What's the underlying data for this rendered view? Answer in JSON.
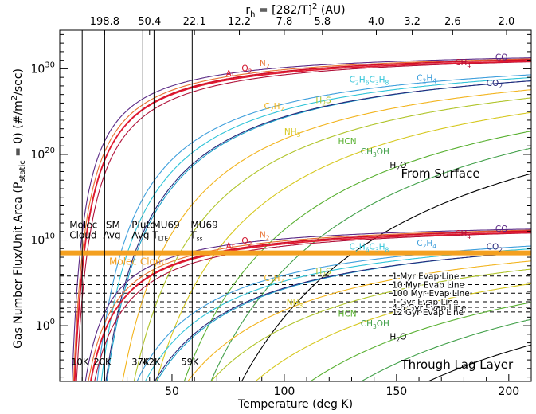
{
  "chart_data": {
    "type": "line",
    "xlabel": "Temperature (deg K)",
    "ylabel": "Gas Number Flux/Unit Area (P",
    "ylabel_sub": "static",
    "ylabel_tail": " = 0)  (#/m",
    "ylabel_sup": "2",
    "ylabel_end": "/sec)",
    "top_axis_label": "r",
    "top_axis_sub": "h",
    "top_axis_mid": " = [282/T]",
    "top_axis_sup": "2",
    "top_axis_end": " (AU)",
    "xlim": [
      0,
      210
    ],
    "y_scale": "log",
    "ylim_log10": [
      -6.5,
      34.5
    ],
    "x_ticks": [
      {
        "value": 50,
        "label": "50"
      },
      {
        "value": 100,
        "label": "100"
      },
      {
        "value": 150,
        "label": "150"
      },
      {
        "value": 200,
        "label": "200"
      }
    ],
    "y_ticks": [
      {
        "value": 0,
        "base": "10",
        "exp": "0"
      },
      {
        "value": 10,
        "base": "10",
        "exp": "10"
      },
      {
        "value": 20,
        "base": "10",
        "exp": "20"
      },
      {
        "value": 30,
        "base": "10",
        "exp": "30"
      }
    ],
    "top_ticks": [
      {
        "x": 20,
        "label": "198.8"
      },
      {
        "x": 40,
        "label": "50.4"
      },
      {
        "x": 60,
        "label": "22.1"
      },
      {
        "x": 80,
        "label": "12.2"
      },
      {
        "x": 100,
        "label": "7.8"
      },
      {
        "x": 117,
        "label": "5.8"
      },
      {
        "x": 141,
        "label": "4.0"
      },
      {
        "x": 157,
        "label": "3.2"
      },
      {
        "x": 175,
        "label": "2.6"
      },
      {
        "x": 199,
        "label": "2.0"
      }
    ],
    "vertical_markers": [
      {
        "x": 10,
        "label1": "Molec",
        "label2": "Cloud",
        "temp": "10K"
      },
      {
        "x": 20,
        "label1": "ISM",
        "label2": "Avg",
        "temp": "20K"
      },
      {
        "x": 37,
        "label1": "Pluto",
        "label2": "Avg",
        "temp": "37K"
      },
      {
        "x": 42,
        "label1": "MU69",
        "label2": "T",
        "sub": "LTE",
        "temp": "42K"
      },
      {
        "x": 59,
        "label1": "MU69",
        "label2": "T",
        "sub": "ss",
        "temp": "59K"
      }
    ],
    "orange_band": {
      "y_log10": 8.5,
      "label": "Molec Cloud",
      "color": "#f4a020"
    },
    "evap_lines": [
      {
        "y_log10": 5.8,
        "label": "1 Myr Evap Line"
      },
      {
        "y_log10": 4.8,
        "label": "10 Myr Evap Line"
      },
      {
        "y_log10": 3.8,
        "label": "100 Myr Evap Line"
      },
      {
        "y_log10": 2.8,
        "label": "1 Gyr Evap Line"
      },
      {
        "y_log10": 2.15,
        "label": "4.6 Gyr Evap Line"
      },
      {
        "y_log10": 1.6,
        "label": "12 Gyr Evap Line"
      }
    ],
    "panel_labels": [
      {
        "text": "From Surface",
        "y_log10": 17.3
      },
      {
        "text": "Through Lag Layer",
        "y_log10": -5.0
      }
    ],
    "series": [
      {
        "label": "CO",
        "color": "#5b2a86",
        "a": 32.3,
        "b": 215
      },
      {
        "label": "CH4",
        "color": "#b0123a",
        "a": 32.2,
        "b": 290
      },
      {
        "label": "N2",
        "color": "#e87030",
        "a": 32.3,
        "b": 240
      },
      {
        "label": "O2",
        "color": "#d0102a",
        "a": 32.3,
        "b": 260
      },
      {
        "label": "Ar",
        "color": "#e01a30",
        "a": 32.1,
        "b": 255
      },
      {
        "label": "C2H4",
        "color": "#3f9fdc",
        "a": 32.4,
        "b": 650
      },
      {
        "label": "C2H6",
        "color": "#30c4d8",
        "a": 32.4,
        "b": 720
      },
      {
        "label": "C3H8",
        "color": "#1aa0c8",
        "a": 32.5,
        "b": 820
      },
      {
        "label": "CO2",
        "color": "#28287a",
        "a": 32.4,
        "b": 800
      },
      {
        "label": "C2H2",
        "color": "#f2b41e",
        "a": 32.8,
        "b": 1100
      },
      {
        "label": "H2S",
        "color": "#b0c42a",
        "a": 32.8,
        "b": 1300
      },
      {
        "label": "NH3",
        "color": "#d6c820",
        "a": 33.0,
        "b": 1700
      },
      {
        "label": "HCN",
        "color": "#58b030",
        "a": 33.2,
        "b": 2200
      },
      {
        "label": "CH3OH",
        "color": "#42a04a",
        "a": 33.6,
        "b": 2700
      },
      {
        "label": "H2O",
        "color": "#000000",
        "a": 33.0,
        "b": 3200
      }
    ],
    "series_labels": [
      {
        "base": "CO",
        "subs": [],
        "color": "#5b2a86",
        "x": 194,
        "y": 31.0
      },
      {
        "base": "CH",
        "subs": [
          "4"
        ],
        "color": "#b0123a",
        "x": 176,
        "y": 30.4
      },
      {
        "base": "CO",
        "subs": [
          "2"
        ],
        "color": "#28287a",
        "x": 190,
        "y": 28.0
      },
      {
        "base": "N",
        "subs": [
          "2"
        ],
        "color": "#e87030",
        "x": 89,
        "y": 30.3
      },
      {
        "base": "O",
        "subs": [
          "2"
        ],
        "color": "#d0102a",
        "x": 81,
        "y": 29.7
      },
      {
        "base": "Ar",
        "subs": [],
        "color": "#e01a30",
        "x": 74,
        "y": 29.1
      },
      {
        "base": "C",
        "subs": [
          "2",
          "H",
          "6",
          "C",
          "3",
          "H",
          "8"
        ],
        "color": "#30c4d8",
        "x": 129,
        "y": 28.4
      },
      {
        "base": "C",
        "subs": [
          "2",
          "H",
          "4"
        ],
        "color": "#3f9fdc",
        "x": 159,
        "y": 28.6
      },
      {
        "base": "C",
        "subs": [
          "2",
          "H",
          "2"
        ],
        "color": "#f2b41e",
        "x": 91,
        "y": 25.3
      },
      {
        "base": "H",
        "subs": [
          "2",
          "S"
        ],
        "color": "#b0c42a",
        "x": 114,
        "y": 26.0
      },
      {
        "base": "NH",
        "subs": [
          "3"
        ],
        "color": "#d6c820",
        "x": 100,
        "y": 22.3
      },
      {
        "base": "HCN",
        "subs": [],
        "color": "#58b030",
        "x": 124,
        "y": 21.2
      },
      {
        "base": "CH",
        "subs": [
          "3",
          "OH"
        ],
        "color": "#42a04a",
        "x": 134,
        "y": 20.0
      },
      {
        "base": "H",
        "subs": [
          "2",
          "O"
        ],
        "color": "#000000",
        "x": 147,
        "y": 18.4
      },
      {
        "base": "CO",
        "subs": [],
        "color": "#5b2a86",
        "x": 194,
        "y": 11.0
      },
      {
        "base": "CH",
        "subs": [
          "4"
        ],
        "color": "#b0123a",
        "x": 176,
        "y": 10.4
      },
      {
        "base": "CO",
        "subs": [
          "2"
        ],
        "color": "#28287a",
        "x": 190,
        "y": 8.9
      },
      {
        "base": "N",
        "subs": [
          "2"
        ],
        "color": "#e87030",
        "x": 89,
        "y": 10.3
      },
      {
        "base": "O",
        "subs": [
          "2"
        ],
        "color": "#d0102a",
        "x": 81,
        "y": 9.6
      },
      {
        "base": "Ar",
        "subs": [],
        "color": "#e01a30",
        "x": 74,
        "y": 9.0
      },
      {
        "base": "C",
        "subs": [
          "2",
          "H",
          "6",
          "C",
          "3",
          "H",
          "8"
        ],
        "color": "#30c4d8",
        "x": 129,
        "y": 8.9
      },
      {
        "base": "C",
        "subs": [
          "2",
          "H",
          "4"
        ],
        "color": "#3f9fdc",
        "x": 159,
        "y": 9.3
      },
      {
        "base": "C",
        "subs": [
          "2",
          "H",
          "2"
        ],
        "color": "#f2b41e",
        "x": 91,
        "y": 5.2
      },
      {
        "base": "H",
        "subs": [
          "2",
          "S"
        ],
        "color": "#b0c42a",
        "x": 114,
        "y": 6.0
      },
      {
        "base": "NH",
        "subs": [
          "3"
        ],
        "color": "#d6c820",
        "x": 101,
        "y": 2.4
      },
      {
        "base": "HCN",
        "subs": [],
        "color": "#58b030",
        "x": 124,
        "y": 1.1
      },
      {
        "base": "CH",
        "subs": [
          "3",
          "OH"
        ],
        "color": "#42a04a",
        "x": 134,
        "y": -0.1
      },
      {
        "base": "H",
        "subs": [
          "2",
          "O"
        ],
        "color": "#000000",
        "x": 147,
        "y": -1.6
      }
    ]
  }
}
